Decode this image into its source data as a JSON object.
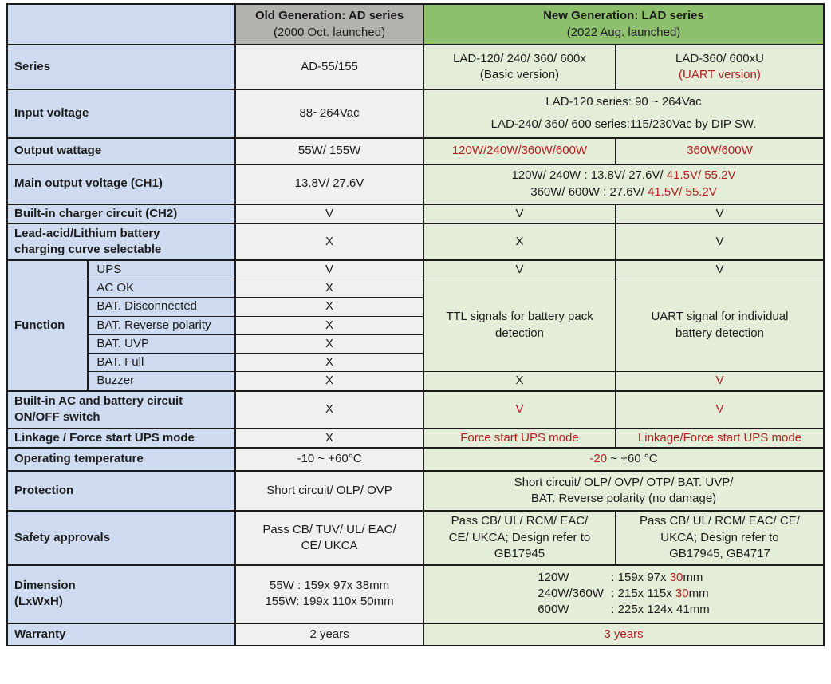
{
  "colors": {
    "label_bg": "#cfdbf0",
    "old_header_bg": "#b3b2ae",
    "new_header_bg": "#8cc06d",
    "old_cell_bg": "#f0f0ee",
    "new_cell_bg": "#e4edd8",
    "red_text": "#b02222",
    "text": "#1c1c1c",
    "border": "#1c1c1c"
  },
  "header": {
    "old": [
      [
        {
          "t": "Old Generation: AD series",
          "b": true
        }
      ],
      [
        {
          "t": "(2000 Oct. launched)"
        }
      ]
    ],
    "new": [
      [
        {
          "t": "New Generation: LAD series",
          "b": true
        }
      ],
      [
        {
          "t": "(2022 Aug. launched)"
        }
      ]
    ]
  },
  "rows": {
    "series": {
      "label": "Series",
      "old": "AD-55/155",
      "basic": [
        [
          {
            "t": "LAD-120/ 240/ 360/ 600x"
          }
        ],
        [
          {
            "t": "(Basic version)"
          }
        ]
      ],
      "uart": [
        [
          {
            "t": "LAD-360/ 600xU"
          }
        ],
        [
          {
            "t": "(UART version)",
            "red": true
          }
        ]
      ]
    },
    "input_voltage": {
      "label": "Input voltage",
      "old": "88~264Vac",
      "new": [
        [
          {
            "t": "LAD-120 series: 90 ~ 264Vac"
          }
        ],
        [
          {
            "t": "LAD-240/ 360/ 600 series:115/230Vac by DIP SW."
          }
        ]
      ]
    },
    "output_wattage": {
      "label": "Output wattage",
      "old": "55W/ 155W",
      "basic": [
        [
          {
            "t": "120W/240W/360W/600W",
            "red": true
          }
        ]
      ],
      "uart": [
        [
          {
            "t": "360W/600W",
            "red": true
          }
        ]
      ]
    },
    "main_output": {
      "label": [
        [
          {
            "t": "Main output voltage ",
            "b": true
          },
          {
            "t": "(CH1)"
          }
        ]
      ],
      "old": "13.8V/ 27.6V",
      "new": [
        [
          {
            "t": "120W/ 240W : 13.8V/ 27.6V/ "
          },
          {
            "t": "41.5V/ 55.2V",
            "red": true
          }
        ],
        [
          {
            "t": "360W/ 600W : 27.6V/ "
          },
          {
            "t": "41.5V/ 55.2V",
            "red": true
          }
        ]
      ]
    },
    "charger": {
      "label": [
        [
          {
            "t": "Built-in charger circuit ",
            "b": true
          },
          {
            "t": "(CH2)"
          }
        ]
      ],
      "old": "V",
      "basic": "V",
      "uart": "V"
    },
    "battery_curve": {
      "label": [
        [
          {
            "t": "Lead-acid/Lithium battery",
            "b": true
          }
        ],
        [
          {
            "t": "charging curve selectable",
            "b": true
          }
        ]
      ],
      "old": "X",
      "basic": "X",
      "uart": "V"
    },
    "function": {
      "label": "Function",
      "subs": [
        {
          "label": "UPS",
          "old": "V",
          "basic": "V",
          "uart": "V"
        },
        {
          "label": "AC OK",
          "old": "X"
        },
        {
          "label": "BAT. Disconnected",
          "old": "X"
        },
        {
          "label": "BAT. Reverse polarity",
          "old": "X"
        },
        {
          "label": "BAT. UVP",
          "old": "X"
        },
        {
          "label": "BAT. Full",
          "old": "X"
        },
        {
          "label": "Buzzer",
          "old": "X",
          "basic": "X"
        }
      ],
      "buzzer_uart": [
        [
          {
            "t": "V",
            "red": true
          }
        ]
      ],
      "basic_merged": [
        [
          {
            "t": "TTL signals for battery pack"
          }
        ],
        [
          {
            "t": "detection"
          }
        ]
      ],
      "uart_merged": [
        [
          {
            "t": "UART signal for individual"
          }
        ],
        [
          {
            "t": "battery detection"
          }
        ]
      ]
    },
    "onoff_switch": {
      "label": [
        [
          {
            "t": "Built-in AC and battery circuit",
            "b": true
          }
        ],
        [
          {
            "t": "ON/OFF switch",
            "b": true
          }
        ]
      ],
      "old": "X",
      "basic": [
        [
          {
            "t": "V",
            "red": true
          }
        ]
      ],
      "uart": [
        [
          {
            "t": "V",
            "red": true
          }
        ]
      ]
    },
    "linkage": {
      "label": "Linkage / Force start UPS mode",
      "old": "X",
      "basic": [
        [
          {
            "t": "Force start UPS mode",
            "red": true
          }
        ]
      ],
      "uart": [
        [
          {
            "t": "Linkage/Force start UPS mode",
            "red": true
          }
        ]
      ]
    },
    "op_temp": {
      "label": "Operating temperature",
      "old": "-10 ~ +60°C",
      "new": [
        [
          {
            "t": "-20",
            "red": true
          },
          {
            "t": " ~ +60 °C"
          }
        ]
      ]
    },
    "protection": {
      "label": "Protection",
      "old": "Short circuit/ OLP/ OVP",
      "new": [
        [
          {
            "t": "Short circuit/ OLP/ OVP/ OTP/ BAT. UVP/"
          }
        ],
        [
          {
            "t": "BAT. Reverse polarity (no damage)"
          }
        ]
      ]
    },
    "safety": {
      "label": "Safety approvals",
      "old": [
        [
          {
            "t": "Pass CB/ TUV/ UL/ EAC/"
          }
        ],
        [
          {
            "t": "CE/ UKCA"
          }
        ]
      ],
      "basic": [
        [
          {
            "t": "Pass CB/ UL/ RCM/ EAC/"
          }
        ],
        [
          {
            "t": "CE/ UKCA; Design refer to"
          }
        ],
        [
          {
            "t": "GB17945"
          }
        ]
      ],
      "uart": [
        [
          {
            "t": "Pass CB/ UL/ RCM/ EAC/ CE/"
          }
        ],
        [
          {
            "t": "UKCA; Design refer to"
          }
        ],
        [
          {
            "t": "GB17945, GB4717"
          }
        ]
      ]
    },
    "dimension": {
      "label": [
        [
          {
            "t": "Dimension",
            "b": true
          }
        ],
        [
          {
            "t": "(LxWxH)"
          }
        ]
      ],
      "old": [
        [
          {
            "t": "55W : 159x 97x 38mm"
          }
        ],
        [
          {
            "t": "155W: 199x 110x 50mm"
          }
        ]
      ],
      "new": [
        [
          {
            "t": "120W",
            "w": true
          },
          {
            "t": ": 159x 97x "
          },
          {
            "t": "30",
            "red": true
          },
          {
            "t": "mm"
          }
        ],
        [
          {
            "t": "240W/360W",
            "w": true
          },
          {
            "t": ": 215x 115x "
          },
          {
            "t": "30",
            "red": true
          },
          {
            "t": "mm"
          }
        ],
        [
          {
            "t": "600W",
            "w": true
          },
          {
            "t": ": 225x 124x 41mm"
          }
        ]
      ]
    },
    "warranty": {
      "label": "Warranty",
      "old": "2 years",
      "new": [
        [
          {
            "t": "3 years",
            "red": true
          }
        ]
      ]
    }
  }
}
